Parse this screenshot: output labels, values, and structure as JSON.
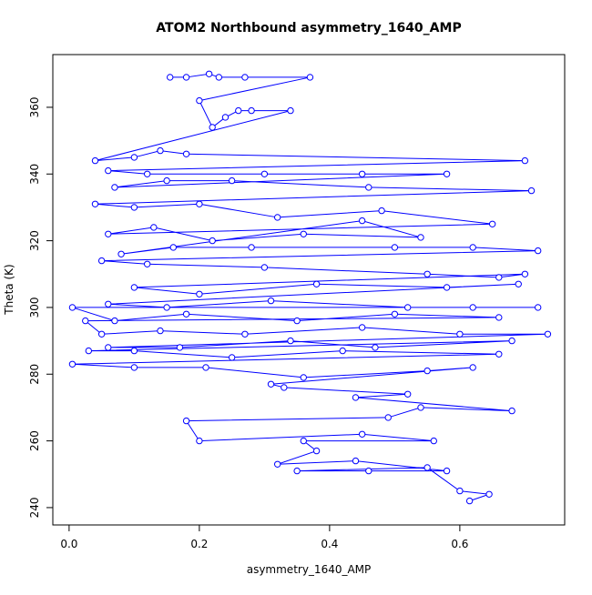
{
  "chart_data": {
    "type": "line",
    "marker": "circle",
    "title": "ATOM2 Northbound asymmetry_1640_AMP",
    "xlabel": "asymmetry_1640_AMP",
    "ylabel": "Theta (K)",
    "xlim": [
      -0.025,
      0.761
    ],
    "ylim": [
      234.8,
      375.8
    ],
    "xticks": [
      {
        "value": 0,
        "label": "0.0"
      },
      0.2,
      0.4,
      0.6
    ],
    "yticks": [
      240,
      260,
      280,
      300,
      320,
      340,
      360
    ],
    "series": [
      {
        "color": "#0000ff",
        "x": [
          0.155,
          0.18,
          0.215,
          0.23,
          0.27,
          0.37,
          0.2,
          0.22,
          0.24,
          0.26,
          0.28,
          0.34,
          0.04,
          0.1,
          0.14,
          0.18,
          0.7,
          0.06,
          0.12,
          0.3,
          0.45,
          0.58,
          0.07,
          0.15,
          0.25,
          0.46,
          0.71,
          0.04,
          0.1,
          0.2,
          0.32,
          0.48,
          0.65,
          0.06,
          0.13,
          0.22,
          0.36,
          0.54,
          0.45,
          0.08,
          0.16,
          0.28,
          0.5,
          0.62,
          0.72,
          0.05,
          0.12,
          0.3,
          0.55,
          0.66,
          0.7,
          0.1,
          0.2,
          0.38,
          0.58,
          0.69,
          0.06,
          0.15,
          0.31,
          0.52,
          0.62,
          0.72,
          0.005,
          0.07,
          0.18,
          0.35,
          0.5,
          0.66,
          0.025,
          0.05,
          0.14,
          0.27,
          0.45,
          0.6,
          0.735,
          0.06,
          0.17,
          0.34,
          0.47,
          0.68,
          0.03,
          0.1,
          0.25,
          0.42,
          0.66,
          0.005,
          0.1,
          0.21,
          0.36,
          0.55,
          0.62,
          0.31,
          0.33,
          0.52,
          0.44,
          0.68,
          0.54,
          0.49,
          0.18,
          0.2,
          0.45,
          0.56,
          0.36,
          0.38,
          0.32,
          0.44,
          0.58,
          0.46,
          0.35,
          0.55,
          0.6,
          0.645,
          0.615
        ],
        "values": [
          369,
          369,
          370,
          369,
          369,
          369,
          362,
          354,
          357,
          359,
          359,
          359,
          344,
          345,
          347,
          346,
          344,
          341,
          340,
          340,
          340,
          340,
          336,
          338,
          338,
          336,
          335,
          331,
          330,
          331,
          327,
          329,
          325,
          322,
          324,
          320,
          322,
          321,
          326,
          316,
          318,
          318,
          318,
          318,
          317,
          314,
          313,
          312,
          310,
          309,
          310,
          306,
          304,
          307,
          306,
          307,
          301,
          300,
          302,
          300,
          300,
          300,
          300,
          296,
          298,
          296,
          298,
          297,
          296,
          292,
          293,
          292,
          294,
          292,
          292,
          288,
          288,
          290,
          288,
          290,
          287,
          287,
          285,
          287,
          286,
          283,
          282,
          282,
          279,
          281,
          282,
          277,
          276,
          274,
          273,
          269,
          270,
          267,
          266,
          260,
          262,
          260,
          260,
          257,
          253,
          254,
          251,
          251,
          251,
          252,
          245,
          244,
          242
        ]
      }
    ]
  }
}
